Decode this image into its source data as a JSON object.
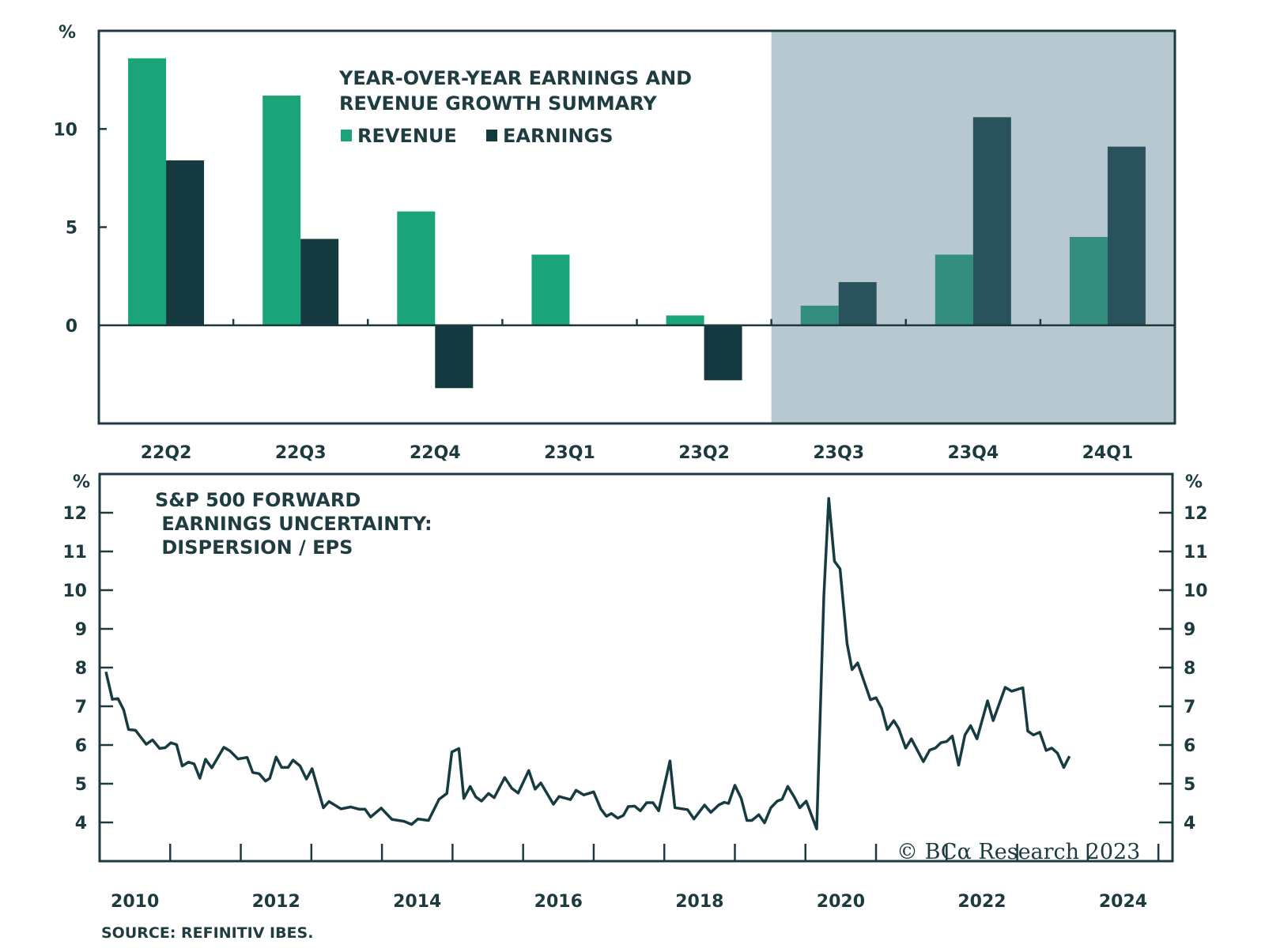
{
  "colors": {
    "revenue": "#1ba37a",
    "earnings": "#143a40",
    "revenue_shaded": "#338e80",
    "earnings_shaded": "#2a525c",
    "shade": "#b7c8d0",
    "axis": "#1d3b3f",
    "line": "#163b40"
  },
  "chart_data": [
    {
      "type": "bar",
      "title": "YEAR-OVER-YEAR EARNINGS AND REVENUE GROWTH SUMMARY",
      "title_lines": [
        "YEAR-OVER-YEAR EARNINGS AND",
        "REVENUE GROWTH SUMMARY"
      ],
      "ylabel": "%",
      "xlabel": "",
      "ylim": [
        -5,
        15
      ],
      "yticks": [
        0,
        5,
        10
      ],
      "grid": false,
      "legend": "top-center",
      "categories": [
        "22Q2",
        "22Q3",
        "22Q4",
        "23Q1",
        "23Q2",
        "23Q3",
        "23Q4",
        "24Q1"
      ],
      "shaded_categories": [
        "23Q3",
        "23Q4",
        "24Q1"
      ],
      "series": [
        {
          "name": "REVENUE",
          "values": [
            13.6,
            11.7,
            5.8,
            3.6,
            0.5,
            1.0,
            3.6,
            4.5
          ]
        },
        {
          "name": "EARNINGS",
          "values": [
            8.4,
            4.4,
            -3.2,
            0.0,
            -2.8,
            2.2,
            10.6,
            9.1
          ]
        }
      ]
    },
    {
      "type": "line",
      "title": "S&P 500 FORWARD EARNINGS UNCERTAINTY: DISPERSION / EPS",
      "title_lines": [
        "S&P 500 FORWARD",
        " EARNINGS UNCERTAINTY:",
        " DISPERSION / EPS"
      ],
      "ylabel_left": "%",
      "ylabel_right": "%",
      "ylim": [
        3,
        13
      ],
      "yticks": [
        4,
        5,
        6,
        7,
        8,
        9,
        10,
        11,
        12
      ],
      "xlim": [
        2010,
        2025.2
      ],
      "xtick_labels": [
        "2010",
        "2012",
        "2014",
        "2016",
        "2018",
        "2020",
        "2022",
        "2024"
      ],
      "grid": false,
      "series": [
        {
          "name": "Dispersion / EPS",
          "points": [
            [
              2010.09,
              7.89
            ],
            [
              2010.18,
              7.18
            ],
            [
              2010.26,
              7.2
            ],
            [
              2010.34,
              6.91
            ],
            [
              2010.41,
              6.4
            ],
            [
              2010.51,
              6.38
            ],
            [
              2010.66,
              6.02
            ],
            [
              2010.75,
              6.13
            ],
            [
              2010.85,
              5.91
            ],
            [
              2010.93,
              5.93
            ],
            [
              2011.01,
              6.06
            ],
            [
              2011.09,
              6.01
            ],
            [
              2011.17,
              5.46
            ],
            [
              2011.26,
              5.56
            ],
            [
              2011.34,
              5.51
            ],
            [
              2011.42,
              5.14
            ],
            [
              2011.5,
              5.63
            ],
            [
              2011.59,
              5.41
            ],
            [
              2011.76,
              5.94
            ],
            [
              2011.85,
              5.84
            ],
            [
              2011.96,
              5.64
            ],
            [
              2012.09,
              5.68
            ],
            [
              2012.17,
              5.29
            ],
            [
              2012.26,
              5.26
            ],
            [
              2012.35,
              5.07
            ],
            [
              2012.41,
              5.14
            ],
            [
              2012.5,
              5.69
            ],
            [
              2012.58,
              5.42
            ],
            [
              2012.67,
              5.42
            ],
            [
              2012.74,
              5.61
            ],
            [
              2012.84,
              5.46
            ],
            [
              2012.93,
              5.12
            ],
            [
              2013.01,
              5.39
            ],
            [
              2013.17,
              4.38
            ],
            [
              2013.25,
              4.54
            ],
            [
              2013.42,
              4.35
            ],
            [
              2013.56,
              4.4
            ],
            [
              2013.68,
              4.34
            ],
            [
              2013.76,
              4.34
            ],
            [
              2013.84,
              4.14
            ],
            [
              2013.99,
              4.37
            ],
            [
              2014.14,
              4.08
            ],
            [
              2014.31,
              4.03
            ],
            [
              2014.42,
              3.95
            ],
            [
              2014.51,
              4.09
            ],
            [
              2014.66,
              4.05
            ],
            [
              2014.81,
              4.6
            ],
            [
              2014.92,
              4.75
            ],
            [
              2014.99,
              5.82
            ],
            [
              2015.09,
              5.91
            ],
            [
              2015.16,
              4.62
            ],
            [
              2015.25,
              4.93
            ],
            [
              2015.33,
              4.66
            ],
            [
              2015.41,
              4.55
            ],
            [
              2015.51,
              4.75
            ],
            [
              2015.59,
              4.64
            ],
            [
              2015.74,
              5.16
            ],
            [
              2015.84,
              4.88
            ],
            [
              2015.93,
              4.76
            ],
            [
              2016.08,
              5.34
            ],
            [
              2016.17,
              4.86
            ],
            [
              2016.25,
              5.02
            ],
            [
              2016.43,
              4.47
            ],
            [
              2016.51,
              4.67
            ],
            [
              2016.67,
              4.59
            ],
            [
              2016.75,
              4.83
            ],
            [
              2016.86,
              4.71
            ],
            [
              2017.0,
              4.79
            ],
            [
              2017.1,
              4.35
            ],
            [
              2017.18,
              4.16
            ],
            [
              2017.25,
              4.23
            ],
            [
              2017.34,
              4.11
            ],
            [
              2017.42,
              4.18
            ],
            [
              2017.49,
              4.41
            ],
            [
              2017.58,
              4.42
            ],
            [
              2017.66,
              4.3
            ],
            [
              2017.75,
              4.51
            ],
            [
              2017.84,
              4.51
            ],
            [
              2017.92,
              4.3
            ],
            [
              2018.08,
              5.59
            ],
            [
              2018.15,
              4.38
            ],
            [
              2018.33,
              4.33
            ],
            [
              2018.42,
              4.09
            ],
            [
              2018.57,
              4.45
            ],
            [
              2018.66,
              4.26
            ],
            [
              2018.77,
              4.45
            ],
            [
              2018.85,
              4.52
            ],
            [
              2018.91,
              4.49
            ],
            [
              2019.0,
              4.96
            ],
            [
              2019.09,
              4.62
            ],
            [
              2019.17,
              4.05
            ],
            [
              2019.24,
              4.05
            ],
            [
              2019.34,
              4.2
            ],
            [
              2019.42,
              3.99
            ],
            [
              2019.51,
              4.38
            ],
            [
              2019.6,
              4.55
            ],
            [
              2019.67,
              4.6
            ],
            [
              2019.75,
              4.93
            ],
            [
              2019.84,
              4.66
            ],
            [
              2019.92,
              4.38
            ],
            [
              2020.01,
              4.55
            ],
            [
              2020.16,
              3.83
            ],
            [
              2020.26,
              9.84
            ],
            [
              2020.33,
              12.37
            ],
            [
              2020.41,
              10.75
            ],
            [
              2020.49,
              10.55
            ],
            [
              2020.59,
              8.62
            ],
            [
              2020.66,
              7.95
            ],
            [
              2020.74,
              8.12
            ],
            [
              2020.92,
              7.17
            ],
            [
              2021.0,
              7.22
            ],
            [
              2021.08,
              6.94
            ],
            [
              2021.16,
              6.4
            ],
            [
              2021.25,
              6.63
            ],
            [
              2021.32,
              6.43
            ],
            [
              2021.42,
              5.92
            ],
            [
              2021.5,
              6.16
            ],
            [
              2021.67,
              5.57
            ],
            [
              2021.76,
              5.87
            ],
            [
              2021.84,
              5.92
            ],
            [
              2021.92,
              6.06
            ],
            [
              2022.0,
              6.09
            ],
            [
              2022.08,
              6.23
            ],
            [
              2022.17,
              5.48
            ],
            [
              2022.26,
              6.26
            ],
            [
              2022.34,
              6.5
            ],
            [
              2022.43,
              6.16
            ],
            [
              2022.58,
              7.14
            ],
            [
              2022.66,
              6.63
            ],
            [
              2022.83,
              7.49
            ],
            [
              2022.92,
              7.39
            ],
            [
              2023.08,
              7.48
            ],
            [
              2023.15,
              6.36
            ],
            [
              2023.23,
              6.26
            ],
            [
              2023.32,
              6.33
            ],
            [
              2023.41,
              5.86
            ],
            [
              2023.49,
              5.92
            ],
            [
              2023.57,
              5.79
            ],
            [
              2023.66,
              5.42
            ],
            [
              2023.74,
              5.71
            ]
          ]
        }
      ]
    }
  ],
  "watermark": "© BCα Research 2023",
  "source": "SOURCE: REFINITIV IBES."
}
